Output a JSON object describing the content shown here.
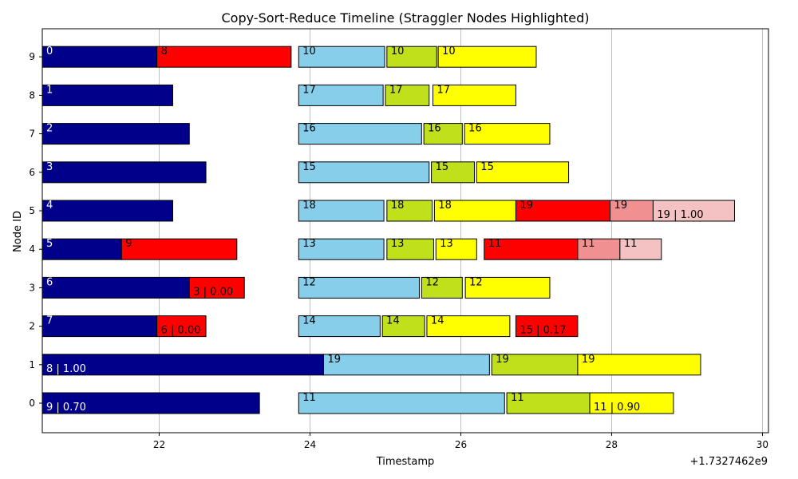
{
  "chart_data": {
    "type": "timeline",
    "title": "Copy-Sort-Reduce Timeline (Straggler Nodes Highlighted)",
    "xlabel": "Timestamp",
    "ylabel": "Node ID",
    "x_offset_label": "+1.7327462e9",
    "xlim": [
      20.45,
      30.08
    ],
    "x_ticks": [
      22,
      24,
      26,
      28,
      30
    ],
    "x_tick_labels": [
      "22",
      "24",
      "26",
      "28",
      "30"
    ],
    "y_ticks": [
      0,
      1,
      2,
      3,
      4,
      5,
      6,
      7,
      8,
      9
    ],
    "y_tick_labels": [
      "0",
      "1",
      "2",
      "3",
      "4",
      "5",
      "6",
      "7",
      "8",
      "9"
    ],
    "straggler_nodes": [
      0,
      1
    ],
    "grid": "x",
    "colors": {
      "copy": "#00008b",
      "straggler": "#ff0000",
      "map": "#87ceeb",
      "sort": "#bfe01a",
      "reduce": "#ffff00",
      "retry_sort": "#f09090",
      "retry_reduce": "#f4c2c2",
      "grid": "#b0b0b0",
      "straggler_tick": "#ff0000"
    },
    "bars": [
      {
        "node": 9,
        "start": 20.45,
        "end": 21.97,
        "phase": "copy",
        "label": "0",
        "label_pos": "top"
      },
      {
        "node": 9,
        "start": 21.97,
        "end": 23.75,
        "phase": "straggler",
        "label": "8",
        "label_pos": "top"
      },
      {
        "node": 9,
        "start": 23.85,
        "end": 24.99,
        "phase": "map",
        "label": "10",
        "label_pos": "top"
      },
      {
        "node": 9,
        "start": 25.02,
        "end": 25.68,
        "phase": "sort",
        "label": "10",
        "label_pos": "top"
      },
      {
        "node": 9,
        "start": 25.7,
        "end": 27.0,
        "phase": "reduce",
        "label": "10",
        "label_pos": "top"
      },
      {
        "node": 8,
        "start": 20.45,
        "end": 22.18,
        "phase": "copy",
        "label": "1",
        "label_pos": "top"
      },
      {
        "node": 8,
        "start": 23.85,
        "end": 24.97,
        "phase": "map",
        "label": "17",
        "label_pos": "top"
      },
      {
        "node": 8,
        "start": 25.0,
        "end": 25.58,
        "phase": "sort",
        "label": "17",
        "label_pos": "top"
      },
      {
        "node": 8,
        "start": 25.63,
        "end": 26.73,
        "phase": "reduce",
        "label": "17",
        "label_pos": "top"
      },
      {
        "node": 7,
        "start": 20.45,
        "end": 22.4,
        "phase": "copy",
        "label": "2",
        "label_pos": "top"
      },
      {
        "node": 7,
        "start": 23.85,
        "end": 25.48,
        "phase": "map",
        "label": "16",
        "label_pos": "top"
      },
      {
        "node": 7,
        "start": 25.51,
        "end": 26.02,
        "phase": "sort",
        "label": "16",
        "label_pos": "top"
      },
      {
        "node": 7,
        "start": 26.05,
        "end": 27.18,
        "phase": "reduce",
        "label": "16",
        "label_pos": "top"
      },
      {
        "node": 6,
        "start": 20.45,
        "end": 22.62,
        "phase": "copy",
        "label": "3",
        "label_pos": "top"
      },
      {
        "node": 6,
        "start": 23.85,
        "end": 25.58,
        "phase": "map",
        "label": "15",
        "label_pos": "top"
      },
      {
        "node": 6,
        "start": 25.61,
        "end": 26.18,
        "phase": "sort",
        "label": "15",
        "label_pos": "top"
      },
      {
        "node": 6,
        "start": 26.21,
        "end": 27.43,
        "phase": "reduce",
        "label": "15",
        "label_pos": "top"
      },
      {
        "node": 5,
        "start": 20.45,
        "end": 22.18,
        "phase": "copy",
        "label": "4",
        "label_pos": "top"
      },
      {
        "node": 5,
        "start": 23.85,
        "end": 24.98,
        "phase": "map",
        "label": "18",
        "label_pos": "top"
      },
      {
        "node": 5,
        "start": 25.02,
        "end": 25.62,
        "phase": "sort",
        "label": "18",
        "label_pos": "top"
      },
      {
        "node": 5,
        "start": 25.65,
        "end": 26.73,
        "phase": "reduce",
        "label": "18",
        "label_pos": "top"
      },
      {
        "node": 5,
        "start": 26.73,
        "end": 27.98,
        "phase": "straggler",
        "label": "19",
        "label_pos": "top"
      },
      {
        "node": 5,
        "start": 27.98,
        "end": 28.55,
        "phase": "retry_sort",
        "label": "19",
        "label_pos": "top"
      },
      {
        "node": 5,
        "start": 28.55,
        "end": 29.63,
        "phase": "retry_reduce",
        "label": "19 | 1.00",
        "label_pos": "bottom"
      },
      {
        "node": 4,
        "start": 20.45,
        "end": 21.5,
        "phase": "copy",
        "label": "5",
        "label_pos": "top"
      },
      {
        "node": 4,
        "start": 21.5,
        "end": 23.03,
        "phase": "straggler",
        "label": "9",
        "label_pos": "top"
      },
      {
        "node": 4,
        "start": 23.85,
        "end": 24.98,
        "phase": "map",
        "label": "13",
        "label_pos": "top"
      },
      {
        "node": 4,
        "start": 25.02,
        "end": 25.64,
        "phase": "sort",
        "label": "13",
        "label_pos": "top"
      },
      {
        "node": 4,
        "start": 25.67,
        "end": 26.21,
        "phase": "reduce",
        "label": "13",
        "label_pos": "top"
      },
      {
        "node": 4,
        "start": 26.31,
        "end": 27.55,
        "phase": "straggler",
        "label": "11",
        "label_pos": "top"
      },
      {
        "node": 4,
        "start": 27.55,
        "end": 28.11,
        "phase": "retry_sort",
        "label": "11",
        "label_pos": "top"
      },
      {
        "node": 4,
        "start": 28.11,
        "end": 28.66,
        "phase": "retry_reduce",
        "label": "11",
        "label_pos": "top"
      },
      {
        "node": 3,
        "start": 20.45,
        "end": 22.4,
        "phase": "copy",
        "label": "6",
        "label_pos": "top"
      },
      {
        "node": 3,
        "start": 22.4,
        "end": 23.13,
        "phase": "straggler",
        "label": "3 | 0.00",
        "label_pos": "bottom"
      },
      {
        "node": 3,
        "start": 23.85,
        "end": 25.45,
        "phase": "map",
        "label": "12",
        "label_pos": "top"
      },
      {
        "node": 3,
        "start": 25.48,
        "end": 26.02,
        "phase": "sort",
        "label": "12",
        "label_pos": "top"
      },
      {
        "node": 3,
        "start": 26.06,
        "end": 27.18,
        "phase": "reduce",
        "label": "12",
        "label_pos": "top"
      },
      {
        "node": 2,
        "start": 20.45,
        "end": 21.97,
        "phase": "copy",
        "label": "7",
        "label_pos": "top"
      },
      {
        "node": 2,
        "start": 21.97,
        "end": 22.62,
        "phase": "straggler",
        "label": "6 | 0.00",
        "label_pos": "bottom"
      },
      {
        "node": 2,
        "start": 23.85,
        "end": 24.93,
        "phase": "map",
        "label": "14",
        "label_pos": "top"
      },
      {
        "node": 2,
        "start": 24.96,
        "end": 25.52,
        "phase": "sort",
        "label": "14",
        "label_pos": "top"
      },
      {
        "node": 2,
        "start": 25.55,
        "end": 26.65,
        "phase": "reduce",
        "label": "14",
        "label_pos": "top"
      },
      {
        "node": 2,
        "start": 26.73,
        "end": 27.55,
        "phase": "straggler",
        "label": "15 | 0.17",
        "label_pos": "bottom"
      },
      {
        "node": 1,
        "start": 20.45,
        "end": 24.18,
        "phase": "copy",
        "label": "8 | 1.00",
        "label_pos": "bottom"
      },
      {
        "node": 1,
        "start": 24.18,
        "end": 26.38,
        "phase": "map",
        "label": "19",
        "label_pos": "top"
      },
      {
        "node": 1,
        "start": 26.41,
        "end": 27.55,
        "phase": "sort",
        "label": "19",
        "label_pos": "top"
      },
      {
        "node": 1,
        "start": 27.55,
        "end": 29.18,
        "phase": "reduce",
        "label": "19",
        "label_pos": "top"
      },
      {
        "node": 0,
        "start": 20.45,
        "end": 23.33,
        "phase": "copy",
        "label": "9 | 0.70",
        "label_pos": "bottom"
      },
      {
        "node": 0,
        "start": 23.85,
        "end": 26.58,
        "phase": "map",
        "label": "11",
        "label_pos": "top"
      },
      {
        "node": 0,
        "start": 26.61,
        "end": 27.71,
        "phase": "sort",
        "label": "11",
        "label_pos": "top"
      },
      {
        "node": 0,
        "start": 27.71,
        "end": 28.82,
        "phase": "reduce",
        "label": "11  | 0.90",
        "label_pos": "bottom"
      }
    ]
  }
}
